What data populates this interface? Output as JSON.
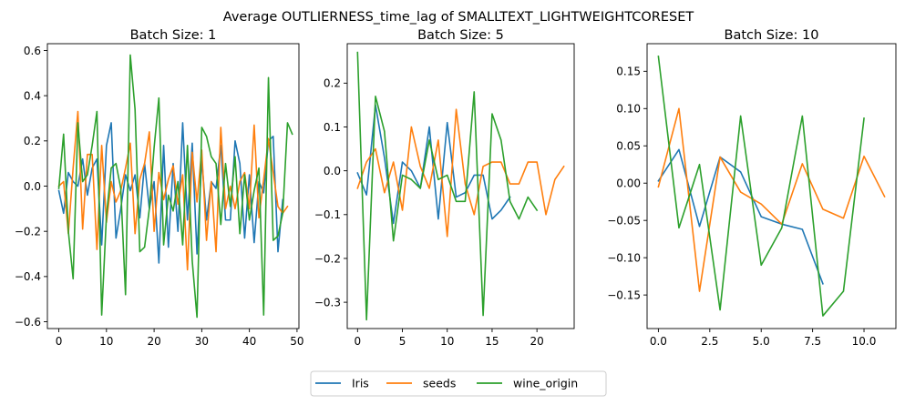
{
  "title": "Average OUTLIERNESS_time_lag of SMALLTEXT_LIGHTWEIGHTCORESET",
  "legend": {
    "placement": "bottom-center",
    "entries": [
      {
        "name": "Iris",
        "color": "#1f77b4"
      },
      {
        "name": "seeds",
        "color": "#ff7f0e"
      },
      {
        "name": "wine_origin",
        "color": "#2ca02c"
      }
    ]
  },
  "chart_data": [
    {
      "type": "line",
      "title": "Batch Size: 1",
      "xlim": [
        -2.4,
        50.4
      ],
      "ylim": [
        -0.63,
        0.63
      ],
      "xticks": [
        0,
        10,
        20,
        30,
        40,
        50
      ],
      "xtick_labels": [
        "0",
        "10",
        "20",
        "30",
        "40",
        "50"
      ],
      "yticks": [
        -0.6,
        -0.4,
        -0.2,
        0.0,
        0.2,
        0.4,
        0.6
      ],
      "ytick_labels": [
        "−0.6",
        "−0.4",
        "−0.2",
        "0.0",
        "0.2",
        "0.4",
        "0.6"
      ],
      "series": [
        {
          "name": "Iris",
          "color": "#1f77b4",
          "values": [
            -0.02,
            -0.12,
            0.06,
            0.02,
            0.0,
            0.12,
            -0.04,
            0.08,
            0.12,
            -0.26,
            0.18,
            0.28,
            -0.23,
            -0.1,
            0.05,
            -0.02,
            0.05,
            -0.14,
            0.1,
            -0.1,
            0.02,
            -0.34,
            0.18,
            -0.27,
            0.1,
            -0.2,
            0.28,
            -0.15,
            0.19,
            -0.3,
            0.12,
            -0.15,
            0.02,
            -0.01,
            0.18,
            -0.15,
            -0.15,
            0.2,
            0.1,
            -0.23,
            0.05,
            -0.25,
            0.02,
            -0.03,
            0.2,
            0.22,
            -0.29,
            -0.06
          ]
        },
        {
          "name": "seeds",
          "color": "#ff7f0e",
          "values": [
            0.0,
            0.02,
            -0.21,
            0.08,
            0.33,
            -0.19,
            0.14,
            0.14,
            -0.28,
            0.18,
            -0.16,
            0.02,
            -0.07,
            -0.02,
            0.08,
            0.19,
            -0.21,
            0.03,
            0.1,
            0.24,
            -0.2,
            0.06,
            -0.06,
            0.03,
            0.09,
            -0.08,
            0.05,
            -0.37,
            0.15,
            -0.07,
            0.16,
            -0.24,
            0.02,
            -0.29,
            0.26,
            -0.1,
            0.0,
            -0.1,
            0.02,
            0.06,
            -0.1,
            0.27,
            -0.14,
            0.03,
            0.21,
            0.06,
            -0.09,
            -0.12,
            -0.09
          ]
        },
        {
          "name": "wine_origin",
          "color": "#2ca02c",
          "values": [
            -0.01,
            0.23,
            -0.2,
            -0.41,
            0.28,
            0.02,
            0.05,
            0.18,
            0.33,
            -0.57,
            -0.13,
            0.08,
            0.1,
            -0.01,
            -0.48,
            0.58,
            0.34,
            -0.29,
            -0.27,
            -0.1,
            0.17,
            0.39,
            -0.26,
            -0.04,
            -0.11,
            0.02,
            -0.26,
            0.18,
            -0.33,
            -0.58,
            0.26,
            0.22,
            0.13,
            0.1,
            -0.17,
            0.1,
            -0.09,
            0.13,
            -0.21,
            0.05,
            -0.15,
            -0.02,
            0.08,
            -0.57,
            0.48,
            -0.24,
            -0.22,
            -0.12,
            0.28,
            0.23
          ]
        }
      ]
    },
    {
      "type": "line",
      "title": "Batch Size: 5",
      "xlim": [
        -1.15,
        24.15
      ],
      "ylim": [
        -0.36,
        0.29
      ],
      "xticks": [
        0,
        5,
        10,
        15,
        20
      ],
      "xtick_labels": [
        "0",
        "5",
        "10",
        "15",
        "20"
      ],
      "yticks": [
        -0.3,
        -0.2,
        -0.1,
        0.0,
        0.1,
        0.2
      ],
      "ytick_labels": [
        "−0.3",
        "−0.2",
        "−0.1",
        "0.0",
        "0.1",
        "0.2"
      ],
      "series": [
        {
          "name": "Iris",
          "color": "#1f77b4",
          "values": [
            -0.005,
            -0.055,
            0.15,
            0.03,
            -0.12,
            0.02,
            0.0,
            -0.04,
            0.1,
            -0.11,
            0.11,
            -0.06,
            -0.05,
            -0.01,
            -0.01,
            -0.11,
            -0.09,
            -0.06
          ]
        },
        {
          "name": "seeds",
          "color": "#ff7f0e",
          "values": [
            -0.04,
            0.02,
            0.05,
            -0.05,
            0.02,
            -0.09,
            0.1,
            0.01,
            -0.04,
            0.07,
            -0.15,
            0.14,
            -0.03,
            -0.1,
            0.01,
            0.02,
            0.02,
            -0.03,
            -0.03,
            0.02,
            0.02,
            -0.1,
            -0.02,
            0.01
          ]
        },
        {
          "name": "wine_origin",
          "color": "#2ca02c",
          "values": [
            0.27,
            -0.34,
            0.17,
            0.09,
            -0.16,
            -0.01,
            -0.02,
            -0.04,
            0.07,
            -0.02,
            -0.01,
            -0.07,
            -0.07,
            0.18,
            -0.33,
            0.13,
            0.07,
            -0.07,
            -0.11,
            -0.06,
            -0.09
          ]
        }
      ]
    },
    {
      "type": "line",
      "title": "Batch Size: 10",
      "xlim": [
        -0.55,
        11.55
      ],
      "ylim": [
        -0.195,
        0.187
      ],
      "xticks": [
        0.0,
        2.5,
        5.0,
        7.5,
        10.0
      ],
      "xtick_labels": [
        "0.0",
        "2.5",
        "5.0",
        "7.5",
        "10.0"
      ],
      "yticks": [
        -0.15,
        -0.1,
        -0.05,
        0.0,
        0.05,
        0.1,
        0.15
      ],
      "ytick_labels": [
        "−0.15",
        "−0.10",
        "−0.05",
        "0.00",
        "0.05",
        "0.10",
        "0.15"
      ],
      "series": [
        {
          "name": "Iris",
          "color": "#1f77b4",
          "values": [
            0.003,
            0.045,
            -0.058,
            0.035,
            0.015,
            -0.045,
            -0.055,
            -0.062,
            -0.135
          ]
        },
        {
          "name": "seeds",
          "color": "#ff7f0e",
          "values": [
            -0.005,
            0.1,
            -0.145,
            0.035,
            -0.012,
            -0.028,
            -0.055,
            0.026,
            -0.035,
            -0.047,
            0.036,
            -0.018
          ]
        },
        {
          "name": "wine_origin",
          "color": "#2ca02c",
          "values": [
            0.17,
            -0.06,
            0.025,
            -0.17,
            0.09,
            -0.11,
            -0.06,
            0.09,
            -0.178,
            -0.145,
            0.087
          ]
        }
      ]
    }
  ]
}
